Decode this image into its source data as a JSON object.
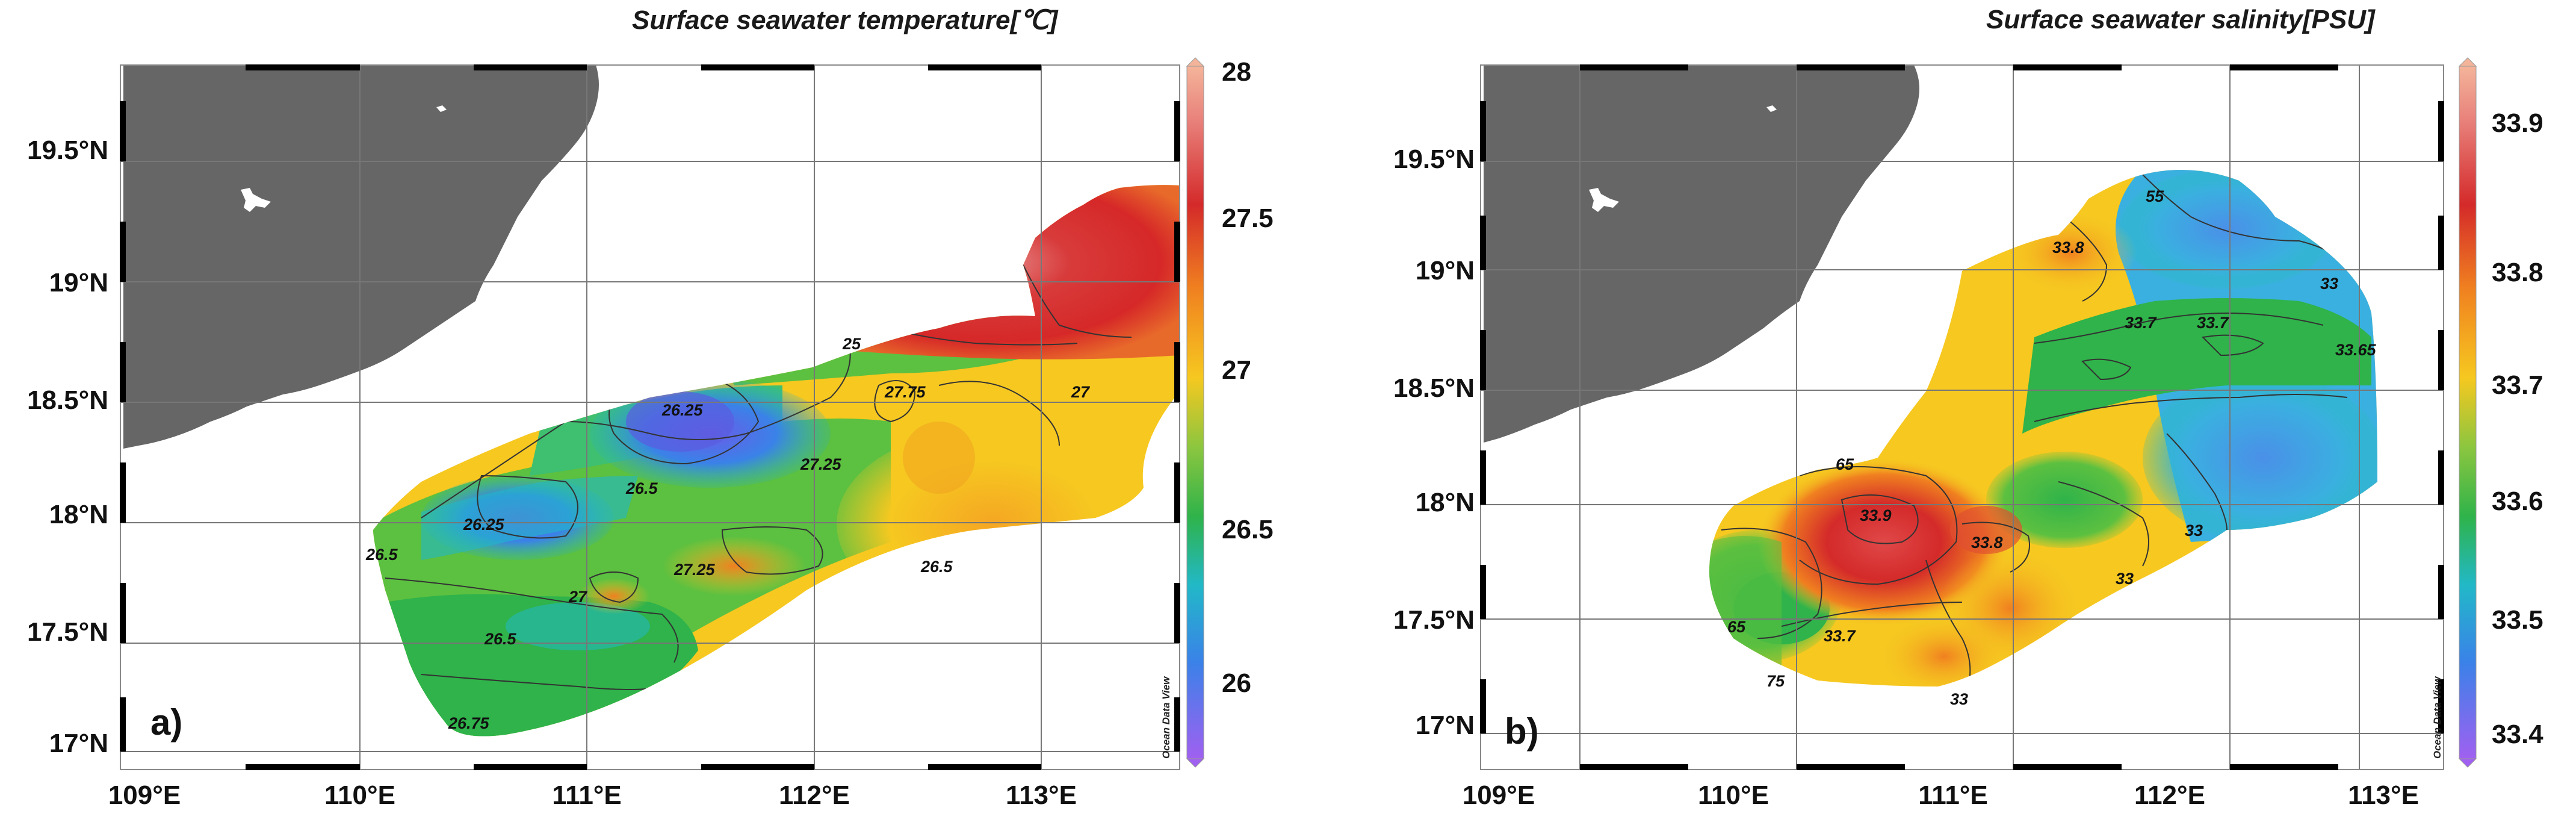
{
  "panels": [
    {
      "id": "a",
      "letter": "a)",
      "title": "Surface seawater temperature[℃]",
      "lat_labels": [
        "19.5°N",
        "19°N",
        "18.5°N",
        "18°N",
        "17.5°N",
        "17°N"
      ],
      "lon_labels": [
        "109°E",
        "110°E",
        "111°E",
        "112°E",
        "113°E"
      ],
      "colorbar_labels": [
        "28",
        "27.5",
        "27",
        "26.5",
        "26"
      ],
      "contour_labels": [
        "25",
        "27.75",
        "27",
        "26.25",
        "26.5",
        "27.25",
        "26.5",
        "26.25",
        "26.5",
        "27",
        "27.25",
        "26.5",
        "26.75"
      ],
      "watermark": "Ocean Data View"
    },
    {
      "id": "b",
      "letter": "b)",
      "title": "Surface seawater salinity[PSU]",
      "lat_labels": [
        "19.5°N",
        "19°N",
        "18.5°N",
        "18°N",
        "17.5°N",
        "17°N"
      ],
      "lon_labels": [
        "109°E",
        "110°E",
        "111°E",
        "112°E",
        "113°E"
      ],
      "colorbar_labels": [
        "33.9",
        "33.8",
        "33.7",
        "33.6",
        "33.5",
        "33.4"
      ],
      "contour_labels": [
        "55",
        "33.8",
        "33",
        "33.7",
        "33.7",
        "33.65",
        "65",
        "33.9",
        "33.8",
        "33",
        "33",
        "65",
        "33.7",
        "75",
        "33"
      ],
      "watermark": "Ocean Data View"
    }
  ],
  "colors": {
    "land": "#666666",
    "grid": "#777777",
    "frame_dash": "#000000"
  }
}
